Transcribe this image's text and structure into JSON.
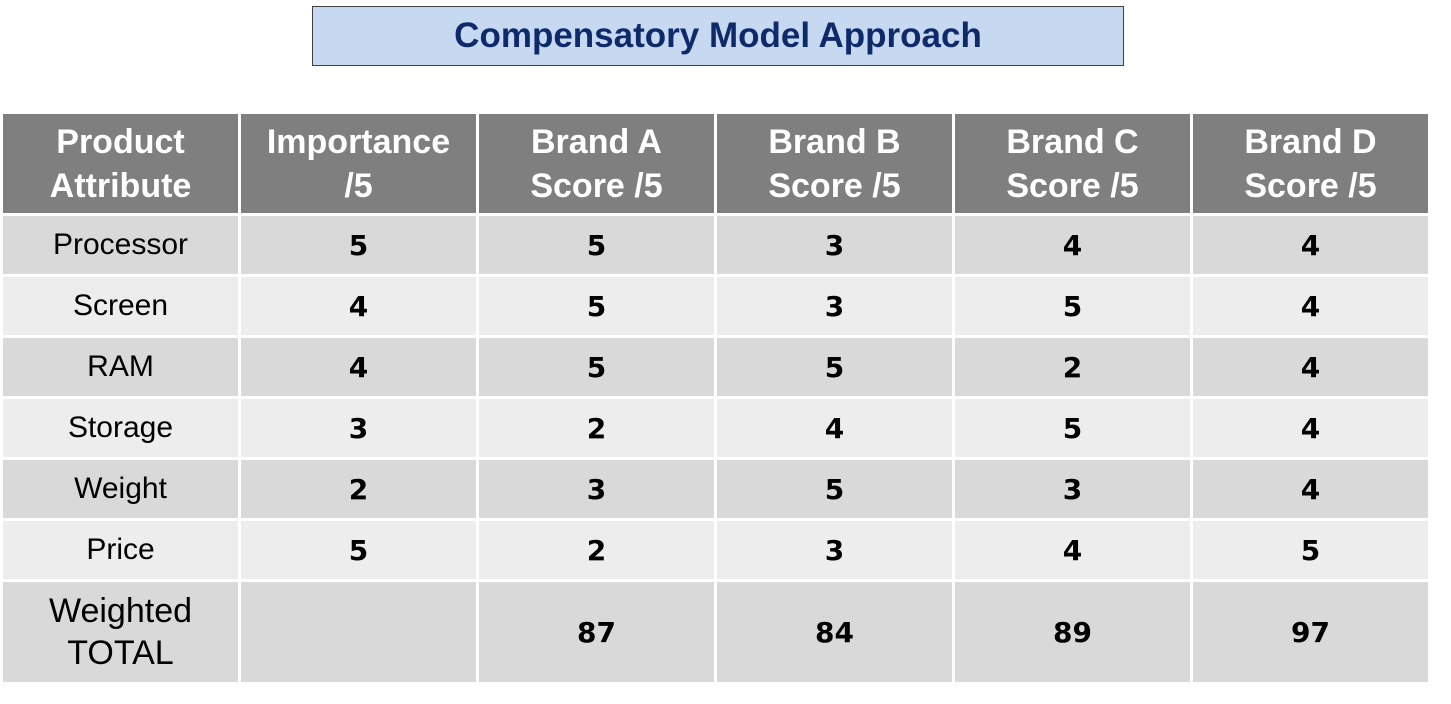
{
  "title": "Compensatory Model Approach",
  "table": {
    "header": [
      [
        "Product",
        "Attribute"
      ],
      [
        "Importance",
        "/5"
      ],
      [
        "Brand A",
        "Score /5"
      ],
      [
        "Brand B",
        "Score /5"
      ],
      [
        "Brand C",
        "Score /5"
      ],
      [
        "Brand D",
        "Score /5"
      ]
    ],
    "rows": [
      {
        "label": "Processor",
        "values": [
          5,
          5,
          3,
          4,
          4
        ]
      },
      {
        "label": "Screen",
        "values": [
          4,
          5,
          3,
          5,
          4
        ]
      },
      {
        "label": "RAM",
        "values": [
          4,
          5,
          5,
          2,
          4
        ]
      },
      {
        "label": "Storage",
        "values": [
          3,
          2,
          4,
          5,
          4
        ]
      },
      {
        "label": "Weight",
        "values": [
          2,
          3,
          5,
          3,
          4
        ]
      },
      {
        "label": "Price",
        "values": [
          5,
          2,
          3,
          4,
          5
        ]
      }
    ],
    "total": {
      "label": [
        "Weighted",
        "TOTAL"
      ],
      "values": [
        87,
        84,
        89,
        97
      ]
    }
  }
}
